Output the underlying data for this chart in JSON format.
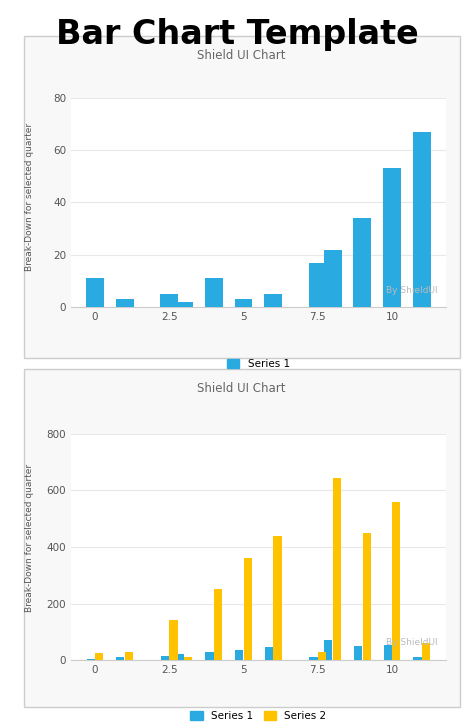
{
  "title": "Bar Chart Template",
  "chart1_title": "Shield UI Chart",
  "chart2_title": "Shield UI Chart",
  "ylabel": "Break-Down for selected quarter",
  "watermark": "By ShieldUI",
  "chart1_x": [
    0,
    1,
    2.5,
    3,
    4,
    5,
    6,
    7.5,
    8,
    9,
    10,
    11
  ],
  "chart1_y": [
    11,
    3,
    5,
    2,
    11,
    3,
    5,
    17,
    22,
    34,
    53,
    67
  ],
  "chart1_color": "#29ABE2",
  "chart1_ylim": [
    0,
    80
  ],
  "chart1_yticks": [
    0,
    20,
    40,
    60,
    80
  ],
  "chart1_xticks": [
    0,
    2.5,
    5,
    7.5,
    10
  ],
  "chart2_x": [
    0,
    1,
    2.5,
    3,
    4,
    5,
    6,
    7.5,
    8,
    9,
    10,
    11
  ],
  "chart2_s1": [
    5,
    10,
    15,
    20,
    30,
    35,
    45,
    10,
    70,
    50,
    55,
    10
  ],
  "chart2_s2": [
    25,
    30,
    140,
    10,
    250,
    360,
    440,
    30,
    645,
    450,
    560,
    60
  ],
  "chart2_color1": "#29ABE2",
  "chart2_color2": "#FFC200",
  "chart2_ylim": [
    0,
    800
  ],
  "chart2_yticks": [
    0,
    200,
    400,
    600,
    800
  ],
  "chart2_xticks": [
    0,
    2.5,
    5,
    7.5,
    10
  ],
  "bg_color": "#FFFFFF",
  "chart_bg": "#FFFFFF",
  "border_color": "#CCCCCC",
  "grid_color": "#E8E8E8",
  "bar_width": 0.6
}
